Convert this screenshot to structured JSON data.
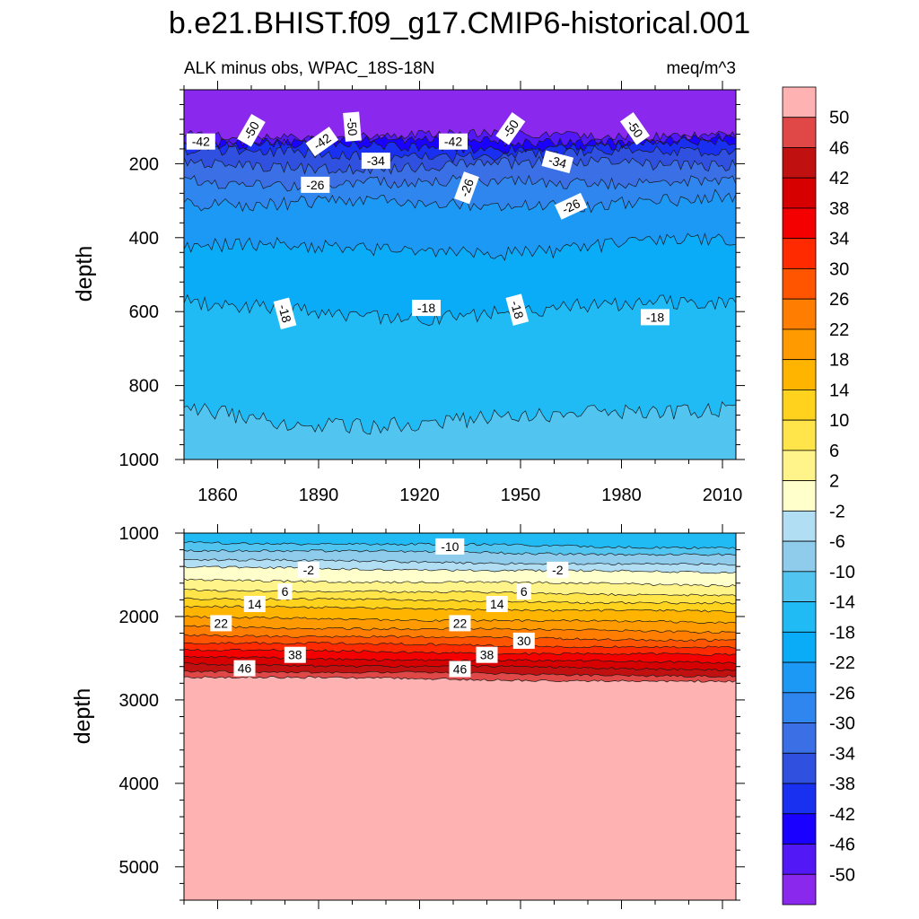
{
  "title": "b.e21.BHIST.f09_g17.CMIP6-historical.001",
  "chart_data": {
    "type": "heatmap",
    "title": "b.e21.BHIST.f09_g17.CMIP6-historical.001",
    "subtitle_left": "ALK minus obs, WPAC_18S-18N",
    "subtitle_right": "meq/m^3",
    "units": "meq/m^3",
    "colorbar": {
      "levels": [
        "-50",
        "-46",
        "-42",
        "-38",
        "-34",
        "-30",
        "-26",
        "-22",
        "-18",
        "-14",
        "-10",
        "-6",
        "-2",
        "2",
        "6",
        "10",
        "14",
        "18",
        "22",
        "26",
        "30",
        "34",
        "38",
        "42",
        "46",
        "50"
      ],
      "colors": [
        "#8a28ee",
        "#5218f5",
        "#1a00ff",
        "#1a30f0",
        "#3050e0",
        "#3a6fe6",
        "#2f86ee",
        "#1b99f5",
        "#0aabf7",
        "#20bbf5",
        "#52c4f0",
        "#8fcceb",
        "#b2def4",
        "#ffffcc",
        "#fff48a",
        "#ffe44a",
        "#ffd21e",
        "#ffb400",
        "#ff9a00",
        "#ff7d00",
        "#ff5500",
        "#ff2a00",
        "#f50000",
        "#d60000",
        "#c01010",
        "#e04848",
        "#ffb2b2"
      ]
    },
    "panels": [
      {
        "name": "upper",
        "ylabel": "depth",
        "xlim": [
          1850,
          2014
        ],
        "ylim": [
          1000,
          0
        ],
        "x_ticks": [
          "1860",
          "1890",
          "1920",
          "1950",
          "1980",
          "2010"
        ],
        "y_ticks": [
          "200",
          "400",
          "600",
          "800",
          "1000"
        ],
        "bands": [
          {
            "bottom": 120,
            "value": -50
          },
          {
            "bottom": 135,
            "value": -46
          },
          {
            "bottom": 150,
            "value": -42
          },
          {
            "bottom": 170,
            "value": -38
          },
          {
            "bottom": 200,
            "value": -34
          },
          {
            "bottom": 245,
            "value": -30
          },
          {
            "bottom": 300,
            "value": -26
          },
          {
            "bottom": 420,
            "value": -22
          },
          {
            "bottom": 585,
            "value": -18
          },
          {
            "bottom": 870,
            "value": -14
          },
          {
            "bottom": 1000,
            "value": -10
          }
        ],
        "contour_labels": [
          {
            "text": "-42",
            "x": 1855,
            "y": 140,
            "angle": 0
          },
          {
            "text": "-50",
            "x": 1870,
            "y": 110,
            "angle": 60
          },
          {
            "text": "-50",
            "x": 1900,
            "y": 100,
            "angle": -85
          },
          {
            "text": "-42",
            "x": 1891,
            "y": 140,
            "angle": 35
          },
          {
            "text": "-34",
            "x": 1907,
            "y": 192,
            "angle": 0
          },
          {
            "text": "-42",
            "x": 1930,
            "y": 140,
            "angle": 0
          },
          {
            "text": "-50",
            "x": 1947,
            "y": 105,
            "angle": 55
          },
          {
            "text": "-26",
            "x": 1934,
            "y": 265,
            "angle": 70
          },
          {
            "text": "-34",
            "x": 1961,
            "y": 195,
            "angle": -15
          },
          {
            "text": "-26",
            "x": 1889,
            "y": 257,
            "angle": 0
          },
          {
            "text": "-26",
            "x": 1965,
            "y": 315,
            "angle": 25
          },
          {
            "text": "-50",
            "x": 1984,
            "y": 105,
            "angle": -55
          },
          {
            "text": "-18",
            "x": 1880,
            "y": 605,
            "angle": -75
          },
          {
            "text": "-18",
            "x": 1922,
            "y": 590,
            "angle": 0
          },
          {
            "text": "-18",
            "x": 1949,
            "y": 595,
            "angle": -75
          },
          {
            "text": "-18",
            "x": 1990,
            "y": 615,
            "angle": 0
          }
        ]
      },
      {
        "name": "lower",
        "ylabel": "depth",
        "xlim": [
          1850,
          2014
        ],
        "ylim": [
          5400,
          1000
        ],
        "y_ticks": [
          "1000",
          "2000",
          "3000",
          "4000",
          "5000"
        ],
        "bands": [
          {
            "bottom": 1110,
            "value": -14
          },
          {
            "bottom": 1200,
            "value": -10
          },
          {
            "bottom": 1320,
            "value": -6
          },
          {
            "bottom": 1410,
            "value": -2
          },
          {
            "bottom": 1560,
            "value": 2
          },
          {
            "bottom": 1680,
            "value": 6
          },
          {
            "bottom": 1780,
            "value": 10
          },
          {
            "bottom": 1880,
            "value": 14
          },
          {
            "bottom": 2010,
            "value": 18
          },
          {
            "bottom": 2120,
            "value": 22
          },
          {
            "bottom": 2220,
            "value": 26
          },
          {
            "bottom": 2310,
            "value": 30
          },
          {
            "bottom": 2400,
            "value": 34
          },
          {
            "bottom": 2490,
            "value": 38
          },
          {
            "bottom": 2570,
            "value": 42
          },
          {
            "bottom": 2650,
            "value": 46
          },
          {
            "bottom": 2720,
            "value": 50
          },
          {
            "bottom": 5400,
            "value": 54
          }
        ],
        "contour_labels": [
          {
            "text": "-10",
            "x": 1929,
            "y": 1160,
            "angle": 0
          },
          {
            "text": "-2",
            "x": 1887,
            "y": 1440,
            "angle": 0
          },
          {
            "text": "-2",
            "x": 1961,
            "y": 1440,
            "angle": 0
          },
          {
            "text": "6",
            "x": 1880,
            "y": 1700,
            "angle": 0
          },
          {
            "text": "6",
            "x": 1951,
            "y": 1700,
            "angle": 0
          },
          {
            "text": "14",
            "x": 1871,
            "y": 1850,
            "angle": 0
          },
          {
            "text": "14",
            "x": 1943,
            "y": 1850,
            "angle": 0
          },
          {
            "text": "22",
            "x": 1861,
            "y": 2080,
            "angle": 0
          },
          {
            "text": "22",
            "x": 1932,
            "y": 2080,
            "angle": 0
          },
          {
            "text": "30",
            "x": 1951,
            "y": 2290,
            "angle": 0
          },
          {
            "text": "38",
            "x": 1883,
            "y": 2460,
            "angle": 0
          },
          {
            "text": "38",
            "x": 1940,
            "y": 2460,
            "angle": 0
          },
          {
            "text": "46",
            "x": 1868,
            "y": 2620,
            "angle": 0
          },
          {
            "text": "46",
            "x": 1932,
            "y": 2630,
            "angle": 0
          }
        ]
      }
    ]
  }
}
